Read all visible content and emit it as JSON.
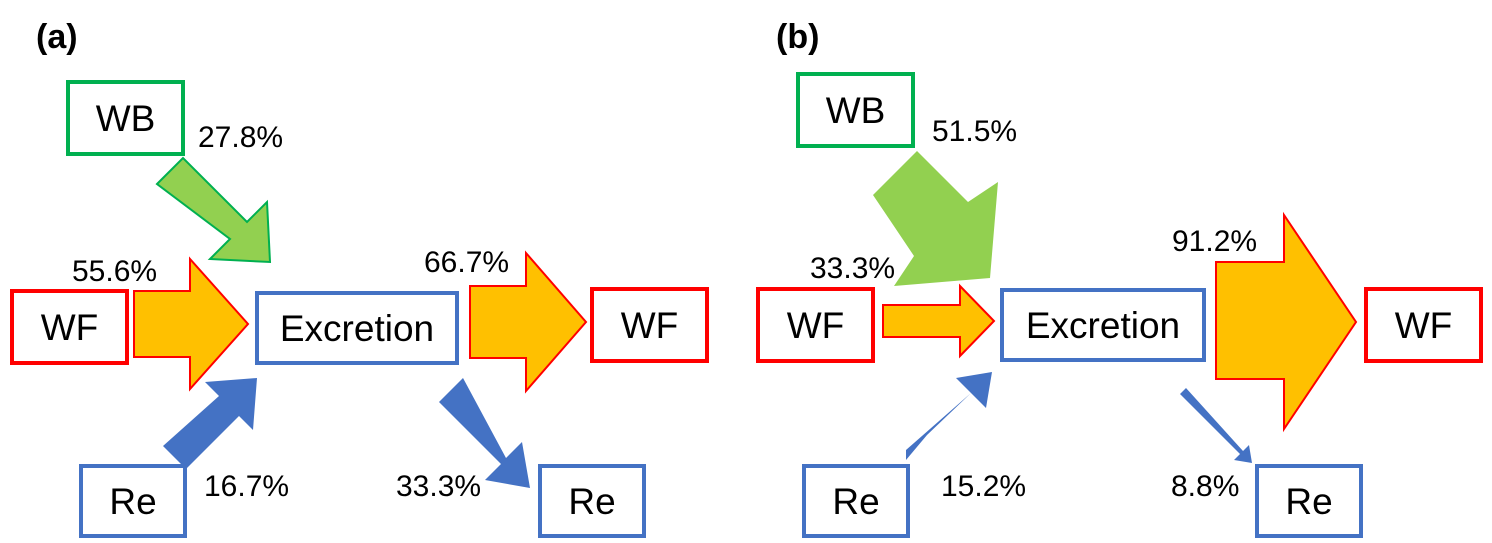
{
  "panels": [
    {
      "label": "(a)",
      "nodes": {
        "wb_in": "WB",
        "wf_in": "WF",
        "re_in": "Re",
        "center": "Excretion",
        "wf_out": "WF",
        "re_out": "Re"
      },
      "flows": {
        "wb_in": "27.8%",
        "wf_in": "55.6%",
        "re_in": "16.7%",
        "wf_out": "66.7%",
        "re_out": "33.3%"
      }
    },
    {
      "label": "(b)",
      "nodes": {
        "wb_in": "WB",
        "wf_in": "WF",
        "re_in": "Re",
        "center": "Excretion",
        "wf_out": "WF",
        "re_out": "Re"
      },
      "flows": {
        "wb_in": "51.5%",
        "wf_in": "33.3%",
        "re_in": "15.2%",
        "wf_out": "91.2%",
        "re_out": "8.8%"
      }
    }
  ],
  "colors": {
    "green_border": "#00B050",
    "red_border": "#FF0000",
    "blue_border": "#4472C4",
    "green_arrow_fill": "#92D050",
    "orange_arrow_fill": "#FFC000",
    "blue_arrow_fill": "#4472C4"
  }
}
